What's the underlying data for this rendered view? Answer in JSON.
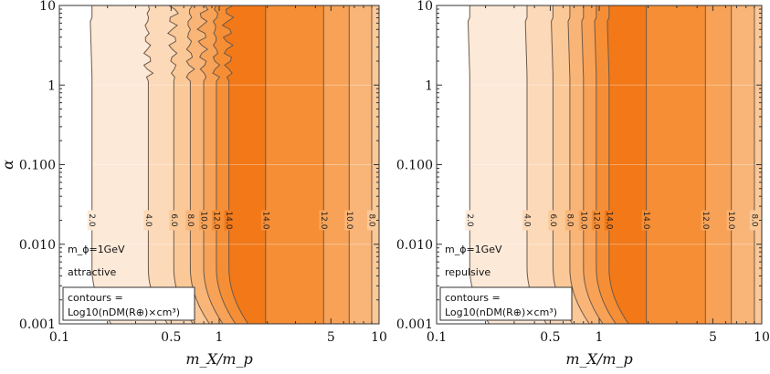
{
  "chart_data": [
    {
      "type": "contour",
      "panel": "left",
      "xlabel": "m_X/m_p",
      "ylabel": "α",
      "xscale": "log",
      "yscale": "log",
      "xlim": [
        0.1,
        10
      ],
      "ylim": [
        0.001,
        10
      ],
      "xticks": [
        0.1,
        0.5,
        1,
        5,
        10
      ],
      "xtick_labels": [
        "0.1",
        "0.5",
        "1",
        "5",
        "10"
      ],
      "yticks": [
        0.001,
        0.01,
        0.1,
        1,
        10
      ],
      "ytick_labels": [
        "0.001",
        "0.010",
        "0.100",
        "1",
        "10"
      ],
      "contour_levels": [
        2.0,
        4.0,
        6.0,
        8.0,
        10.0,
        12.0,
        14.0,
        14.0,
        12.0,
        10.0,
        8.0
      ],
      "contour_x_at_label": [
        0.16,
        0.36,
        0.52,
        0.66,
        0.8,
        0.96,
        1.15,
        1.95,
        4.5,
        6.5,
        9.0
      ],
      "contour_label_alpha": 0.02,
      "annotations": [
        "m_ϕ=1GeV",
        "attractive"
      ],
      "legend_box": {
        "line1": "contours =",
        "line2": "Log10(nDM(R⊕)×cm³)"
      }
    },
    {
      "type": "contour",
      "panel": "right",
      "xlabel": "m_X/m_p",
      "ylabel": "",
      "xscale": "log",
      "yscale": "log",
      "xlim": [
        0.1,
        10
      ],
      "ylim": [
        0.001,
        10
      ],
      "xticks": [
        0.1,
        0.5,
        1,
        5,
        10
      ],
      "xtick_labels": [
        "0.1",
        "0.5",
        "1",
        "5",
        "10"
      ],
      "yticks": [
        0.001,
        0.01,
        0.1,
        1,
        10
      ],
      "ytick_labels": [
        "0.001",
        "0.010",
        "0.100",
        "1",
        "10"
      ],
      "contour_levels": [
        2.0,
        4.0,
        6.0,
        8.0,
        10.0,
        12.0,
        14.0,
        14.0,
        12.0,
        10.0,
        8.0
      ],
      "contour_x_at_label": [
        0.16,
        0.36,
        0.52,
        0.66,
        0.8,
        0.96,
        1.15,
        1.95,
        4.5,
        6.5,
        9.0
      ],
      "contour_label_alpha": 0.02,
      "annotations": [
        "m_ϕ=1GeV",
        "repulsive"
      ],
      "legend_box": {
        "line1": "contours =",
        "line2": "Log10(nDM(R⊕)×cm³)"
      }
    }
  ],
  "colors": {
    "band_0": "#ffffff",
    "band_1": "#fde9d7",
    "band_2": "#fcd9b8",
    "band_3": "#fbc897",
    "band_4": "#f9b577",
    "band_5": "#f7a257",
    "band_6": "#f58e35",
    "band_7": "#f27818",
    "line": "#6e5a4a"
  }
}
